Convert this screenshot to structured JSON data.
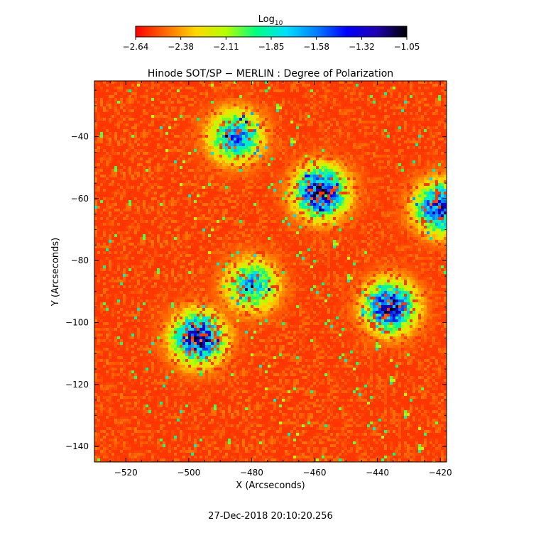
{
  "colorbar": {
    "title": "Log",
    "title_sub": "10",
    "tick_labels": [
      "−2.64",
      "−2.38",
      "−2.11",
      "−1.85",
      "−1.58",
      "−1.32",
      "−1.05"
    ],
    "range": [
      -2.64,
      -1.05
    ],
    "colors": [
      "#ff0000",
      "#ff6a00",
      "#ffd800",
      "#b4ff00",
      "#00ff80",
      "#00e0ff",
      "#0080ff",
      "#0000ff",
      "#2000b0",
      "#000000"
    ]
  },
  "chart_data": {
    "type": "heatmap",
    "title": "Hinode SOT/SP − MERLIN : Degree of Polarization",
    "xlabel": "X (Arcseconds)",
    "ylabel": "Y (Arcseconds)",
    "xlim": [
      -530,
      -418
    ],
    "ylim": [
      -145,
      -22
    ],
    "x_ticks": [
      -520,
      -500,
      -480,
      -460,
      -440,
      -420
    ],
    "x_tick_labels": [
      "−520",
      "−500",
      "−480",
      "−460",
      "−440",
      "−420"
    ],
    "y_ticks": [
      -40,
      -60,
      -80,
      -100,
      -120,
      -140
    ],
    "y_tick_labels": [
      "−40",
      "−60",
      "−80",
      "−100",
      "−120",
      "−140"
    ],
    "value_units": "log10 degree of polarization",
    "value_range": [
      -2.64,
      -1.05
    ],
    "background_level": -2.55,
    "high_polarization_regions": [
      {
        "x": -497,
        "y": -105,
        "peak": -1.1
      },
      {
        "x": -458,
        "y": -58,
        "peak": -1.1
      },
      {
        "x": -436,
        "y": -95,
        "peak": -1.2
      },
      {
        "x": -485,
        "y": -40,
        "peak": -1.5
      },
      {
        "x": -420,
        "y": -63,
        "peak": -1.3
      },
      {
        "x": -480,
        "y": -88,
        "peak": -1.6
      }
    ]
  },
  "footer": {
    "timestamp": "27-Dec-2018 20:10:20.256"
  }
}
